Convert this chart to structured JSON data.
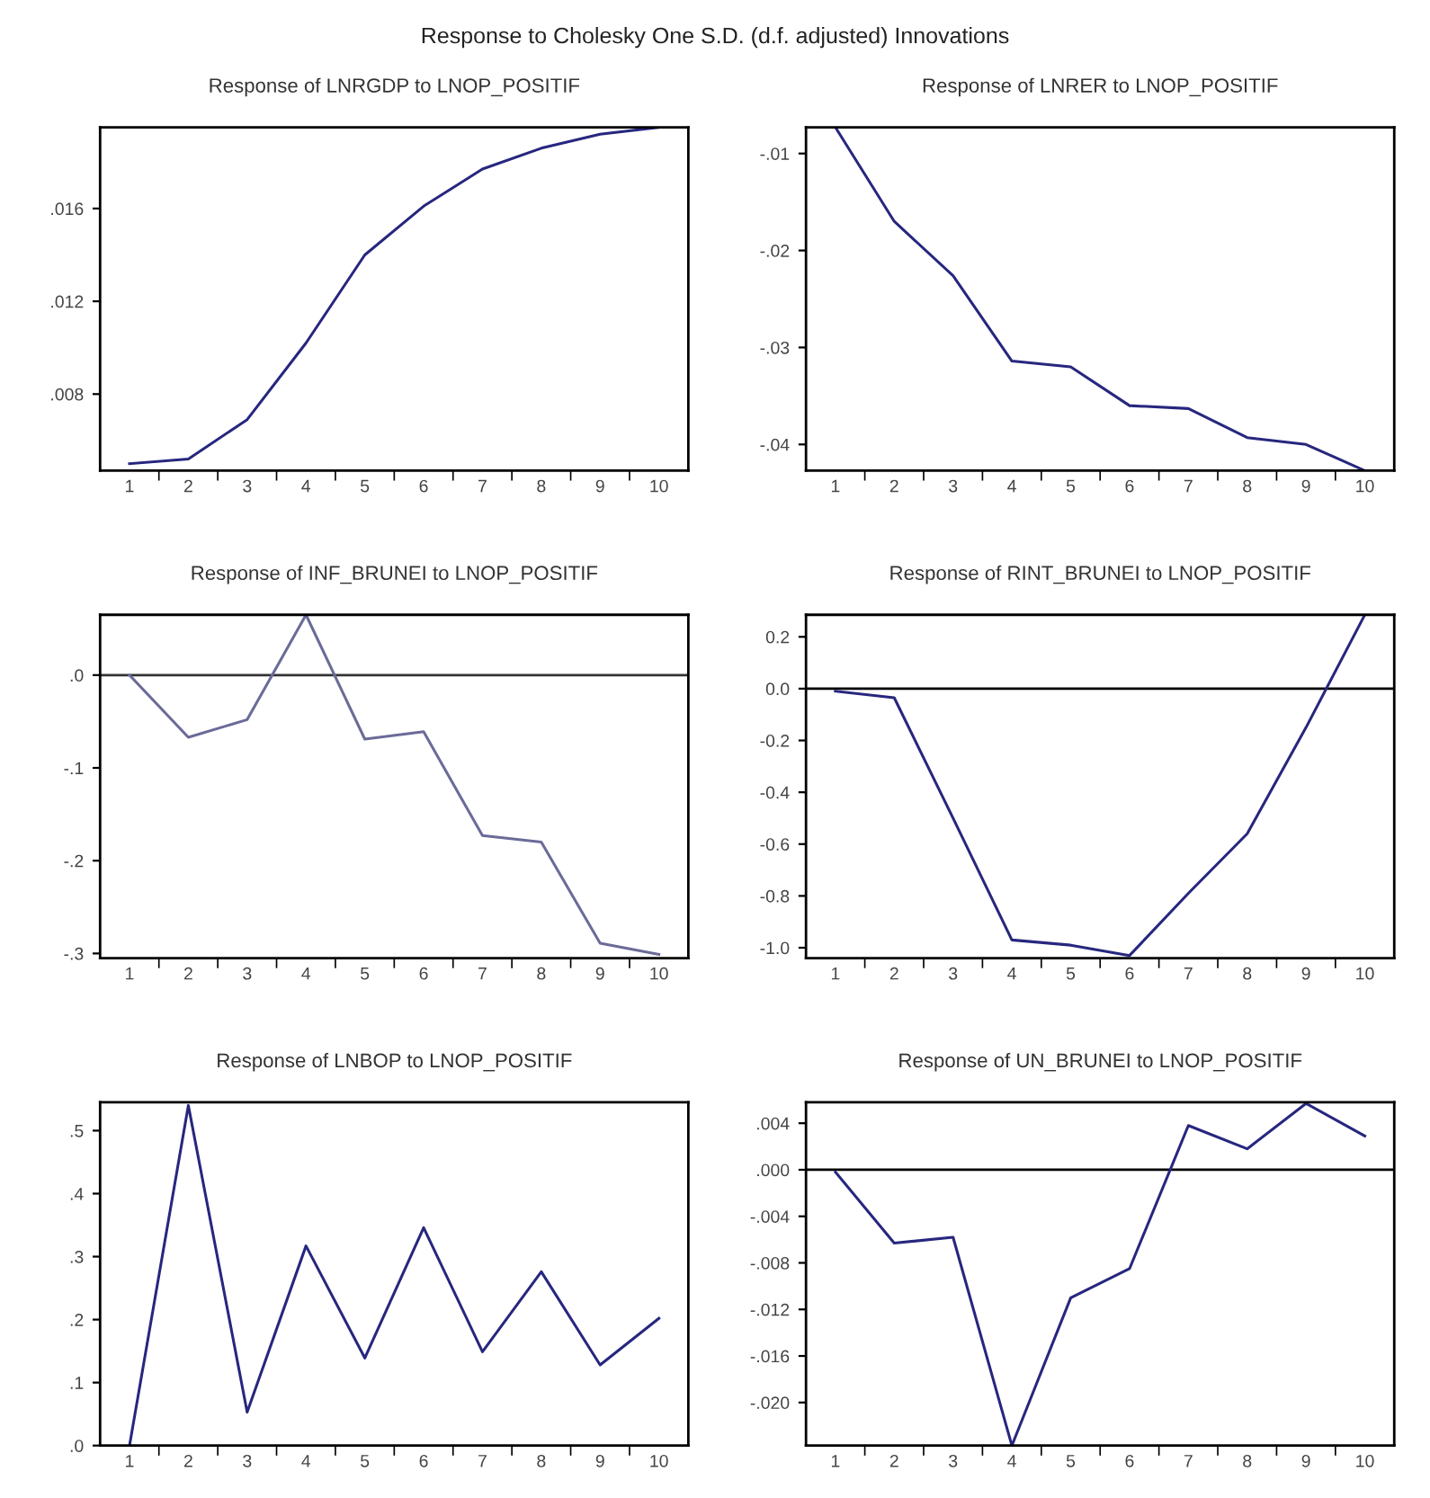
{
  "chart_data": [
    {
      "type": "line",
      "title": "Response of LNRGDP to LNOP_POSITIF",
      "annotations": [
        "Response to Cholesky One S.D. (d.f. adjusted) Innovations"
      ],
      "categories": [
        "1",
        "2",
        "3",
        "4",
        "5",
        "6",
        "7",
        "8",
        "9",
        "10"
      ],
      "series": [
        {
          "color": "#27277f",
          "values": [
            0.005,
            0.0052,
            0.0069,
            0.0102,
            0.014,
            0.0161,
            0.0177,
            0.0186,
            0.0192,
            0.0195
          ]
        }
      ],
      "ylim": [
        0.0047,
        0.0195
      ],
      "yticks": [
        {
          "value": 0.008,
          "label": ".008"
        },
        {
          "value": 0.012,
          "label": ".012"
        },
        {
          "value": 0.016,
          "label": ".016"
        }
      ],
      "grid": false
    },
    {
      "type": "line",
      "title": "Response of LNRER to LNOP_POSITIF",
      "categories": [
        "1",
        "2",
        "3",
        "4",
        "5",
        "6",
        "7",
        "8",
        "9",
        "10"
      ],
      "series": [
        {
          "color": "#27277f",
          "values": [
            -0.0073,
            -0.017,
            -0.0226,
            -0.0314,
            -0.032,
            -0.036,
            -0.0363,
            -0.0393,
            -0.04,
            -0.0427
          ]
        }
      ],
      "ylim": [
        -0.0427,
        -0.0073
      ],
      "yticks": [
        {
          "value": -0.04,
          "label": "-.04"
        },
        {
          "value": -0.03,
          "label": "-.03"
        },
        {
          "value": -0.02,
          "label": "-.02"
        },
        {
          "value": -0.01,
          "label": "-.01"
        }
      ],
      "grid": false
    },
    {
      "type": "line",
      "title": "Response of INF_BRUNEI to LNOP_POSITIF",
      "categories": [
        "1",
        "2",
        "3",
        "4",
        "5",
        "6",
        "7",
        "8",
        "9",
        "10"
      ],
      "series": [
        {
          "color": "#6b6b99",
          "values": [
            0.0,
            -0.067,
            -0.048,
            0.065,
            -0.069,
            -0.061,
            -0.173,
            -0.18,
            -0.289,
            -0.301
          ]
        }
      ],
      "ylim": [
        -0.305,
        0.065
      ],
      "yticks": [
        {
          "value": -0.3,
          "label": "-.3"
        },
        {
          "value": -0.2,
          "label": "-.2"
        },
        {
          "value": -0.1,
          "label": "-.1"
        },
        {
          "value": 0,
          "label": ".0"
        }
      ],
      "ref_lines": [
        {
          "axis": "y",
          "value": 0,
          "color": "#333333"
        }
      ],
      "grid": false
    },
    {
      "type": "line",
      "title": "Response of RINT_BRUNEI to LNOP_POSITIF",
      "categories": [
        "1",
        "2",
        "3",
        "4",
        "5",
        "6",
        "7",
        "8",
        "9",
        "10"
      ],
      "series": [
        {
          "color": "#27277f",
          "values": [
            -0.01,
            -0.035,
            -0.5,
            -0.97,
            -0.99,
            -1.03,
            -0.79,
            -0.56,
            -0.15,
            0.285
          ]
        }
      ],
      "ylim": [
        -1.04,
        0.285
      ],
      "yticks": [
        {
          "value": -1.0,
          "label": "-1.0"
        },
        {
          "value": -0.8,
          "label": "-0.8"
        },
        {
          "value": -0.6,
          "label": "-0.6"
        },
        {
          "value": -0.4,
          "label": "-0.4"
        },
        {
          "value": -0.2,
          "label": "-0.2"
        },
        {
          "value": 0,
          "label": "0.0"
        },
        {
          "value": 0.2,
          "label": "0.2"
        }
      ],
      "ref_lines": [
        {
          "axis": "y",
          "value": 0,
          "color": "#000000"
        }
      ],
      "grid": false
    },
    {
      "type": "line",
      "title": "Response of LNBOP to LNOP_POSITIF",
      "categories": [
        "1",
        "2",
        "3",
        "4",
        "5",
        "6",
        "7",
        "8",
        "9",
        "10"
      ],
      "series": [
        {
          "color": "#27277f",
          "values": [
            0.0,
            0.54,
            0.053,
            0.317,
            0.139,
            0.346,
            0.149,
            0.276,
            0.128,
            0.202
          ]
        }
      ],
      "ylim": [
        0.0,
        0.545
      ],
      "yticks": [
        {
          "value": 0,
          "label": ".0"
        },
        {
          "value": 0.1,
          "label": ".1"
        },
        {
          "value": 0.2,
          "label": ".2"
        },
        {
          "value": 0.3,
          "label": ".3"
        },
        {
          "value": 0.4,
          "label": ".4"
        },
        {
          "value": 0.5,
          "label": ".5"
        }
      ],
      "grid": false
    },
    {
      "type": "line",
      "title": "Response of UN_BRUNEI to LNOP_POSITIF",
      "categories": [
        "1",
        "2",
        "3",
        "4",
        "5",
        "6",
        "7",
        "8",
        "9",
        "10"
      ],
      "series": [
        {
          "color": "#27277f",
          "values": [
            -0.0002,
            -0.0063,
            -0.0058,
            -0.0237,
            -0.011,
            -0.0085,
            0.0038,
            0.0018,
            0.0057,
            0.0029
          ]
        }
      ],
      "ylim": [
        -0.0237,
        0.0058
      ],
      "yticks": [
        {
          "value": -0.02,
          "label": "-.020"
        },
        {
          "value": -0.016,
          "label": "-.016"
        },
        {
          "value": -0.012,
          "label": "-.012"
        },
        {
          "value": -0.008,
          "label": "-.008"
        },
        {
          "value": -0.004,
          "label": "-.004"
        },
        {
          "value": 0,
          "label": ".000"
        },
        {
          "value": 0.004,
          "label": ".004"
        }
      ],
      "ref_lines": [
        {
          "axis": "y",
          "value": 0,
          "color": "#000000"
        }
      ],
      "grid": false
    }
  ]
}
